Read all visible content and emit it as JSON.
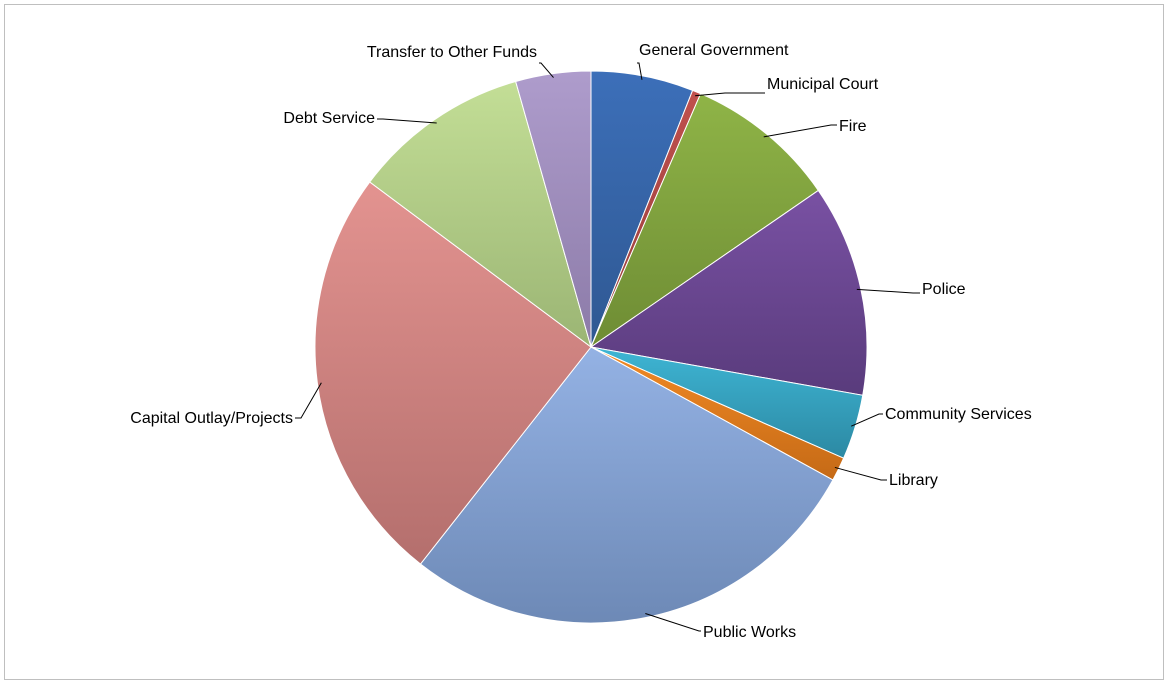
{
  "chart_data": {
    "type": "pie",
    "title": "",
    "start_angle_deg": 0,
    "direction": "clockwise",
    "slices": [
      {
        "label": "General Government",
        "value": 6.0,
        "color": "#3c6fb9",
        "color_dark": "#2f5892"
      },
      {
        "label": "Municipal Court",
        "value": 0.5,
        "color": "#c0504d",
        "color_dark": "#963e3c"
      },
      {
        "label": "Fire",
        "value": 8.9,
        "color": "#8fb447",
        "color_dark": "#6e8c34"
      },
      {
        "label": "Police",
        "value": 12.4,
        "color": "#7951a3",
        "color_dark": "#593b7c"
      },
      {
        "label": "Community Services",
        "value": 3.8,
        "color": "#3eb5d4",
        "color_dark": "#2c89a3"
      },
      {
        "label": "Library",
        "value": 1.4,
        "color": "#f28a25",
        "color_dark": "#c56a16"
      },
      {
        "label": "Public Works",
        "value": 27.6,
        "color": "#94b2e4",
        "color_dark": "#6d89b6"
      },
      {
        "label": "Capital Outlay/Projects",
        "value": 24.6,
        "color": "#e39390",
        "color_dark": "#b46f6d"
      },
      {
        "label": "Debt Service",
        "value": 10.4,
        "color": "#c3de96",
        "color_dark": "#9bb574"
      },
      {
        "label": "Transfer to Other Funds",
        "value": 4.4,
        "color": "#ae9ccc",
        "color_dark": "#8c7ba8"
      }
    ]
  }
}
